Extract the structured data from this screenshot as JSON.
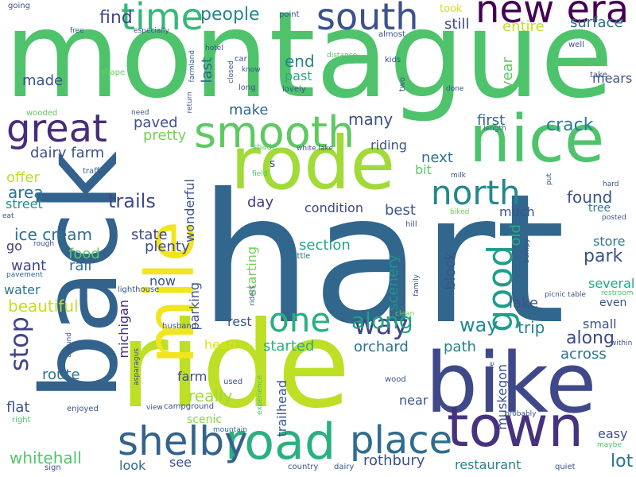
{
  "words": [
    {
      "text": "hart",
      "color": "#31668d"
    },
    {
      "text": "montague",
      "color": "#4ec36b"
    },
    {
      "text": "ride",
      "color": "#bddf26"
    },
    {
      "text": "back",
      "color": "#33628d"
    },
    {
      "text": "bike",
      "color": "#3f4889"
    },
    {
      "text": "mile",
      "color": "#f1e51d"
    },
    {
      "text": "rode",
      "color": "#a2da37"
    },
    {
      "text": "nice",
      "color": "#4ec36b"
    },
    {
      "text": "town",
      "color": "#46327e"
    },
    {
      "text": "new era",
      "color": "#440154"
    },
    {
      "text": "south",
      "color": "#3b528b"
    },
    {
      "text": "smooth",
      "color": "#5ec962"
    },
    {
      "text": "great",
      "color": "#472c7a"
    },
    {
      "text": "time",
      "color": "#35b779"
    },
    {
      "text": "road",
      "color": "#2ab07f"
    },
    {
      "text": "place",
      "color": "#2f6c8e"
    },
    {
      "text": "shelby",
      "color": "#33638d"
    },
    {
      "text": "north",
      "color": "#24878e"
    },
    {
      "text": "good",
      "color": "#1f9e89"
    },
    {
      "text": "one",
      "color": "#29af7f"
    },
    {
      "text": "stop",
      "color": "#414487"
    },
    {
      "text": "way",
      "color": "#414487"
    },
    {
      "text": "along",
      "color": "#20a386"
    },
    {
      "text": "along",
      "color": "#3e4a89"
    },
    {
      "text": "way",
      "color": "#23898e"
    },
    {
      "text": "people",
      "color": "#25858e"
    },
    {
      "text": "find",
      "color": "#3f4788"
    },
    {
      "text": "made",
      "color": "#3b528b"
    },
    {
      "text": "took",
      "color": "#d0e11c"
    },
    {
      "text": "still",
      "color": "#404688"
    },
    {
      "text": "entire",
      "color": "#c2df23"
    },
    {
      "text": "surface",
      "color": "#2d718e"
    },
    {
      "text": "end",
      "color": "#25858e"
    },
    {
      "text": "year",
      "color": "#5ec962"
    },
    {
      "text": "past",
      "color": "#26ad81"
    },
    {
      "text": "last",
      "color": "#32648e"
    },
    {
      "text": "mears",
      "color": "#3d4e8a"
    },
    {
      "text": "paved",
      "color": "#3b528b"
    },
    {
      "text": "pretty",
      "color": "#75d054"
    },
    {
      "text": "make",
      "color": "#306a8e"
    },
    {
      "text": "many",
      "color": "#3b528b"
    },
    {
      "text": "first",
      "color": "#31688e"
    },
    {
      "text": "crack",
      "color": "#297b8e"
    },
    {
      "text": "dairy farm",
      "color": "#3b528b"
    },
    {
      "text": "riding",
      "color": "#3b528b"
    },
    {
      "text": "next",
      "color": "#2c728e"
    },
    {
      "text": "bit",
      "color": "#5ec962"
    },
    {
      "text": "offer",
      "color": "#bddf26"
    },
    {
      "text": "trails",
      "color": "#3e4989"
    },
    {
      "text": "found",
      "color": "#3b528b"
    },
    {
      "text": "area",
      "color": "#2c738e"
    },
    {
      "text": "day",
      "color": "#433e85"
    },
    {
      "text": "street",
      "color": "#21918c"
    },
    {
      "text": "condition",
      "color": "#3f4788"
    },
    {
      "text": "best",
      "color": "#3b528b"
    },
    {
      "text": "much",
      "color": "#3b528b"
    },
    {
      "text": "tree",
      "color": "#277f8e"
    },
    {
      "text": "wonderful",
      "color": "#3b528b"
    },
    {
      "text": "ice cream",
      "color": "#2e6e8e"
    },
    {
      "text": "state",
      "color": "#3e4989"
    },
    {
      "text": "plenty",
      "color": "#3d4e8a"
    },
    {
      "text": "section",
      "color": "#22a785"
    },
    {
      "text": "park",
      "color": "#3b528b"
    },
    {
      "text": "store",
      "color": "#2a788e"
    },
    {
      "text": "go",
      "color": "#443983"
    },
    {
      "text": "food",
      "color": "#5ec962"
    },
    {
      "text": "rail",
      "color": "#2e6f8e"
    },
    {
      "text": "want",
      "color": "#3f4889"
    },
    {
      "text": "old",
      "color": "#26ad81"
    },
    {
      "text": "several",
      "color": "#22a884"
    },
    {
      "text": "now",
      "color": "#3b528b"
    },
    {
      "text": "scenery",
      "color": "#1f958b"
    },
    {
      "text": "block",
      "color": "#3b528b"
    },
    {
      "text": "water",
      "color": "#2a788e"
    },
    {
      "text": "lake",
      "color": "#3b528b"
    },
    {
      "text": "beautiful",
      "color": "#c2df23"
    },
    {
      "text": "parking",
      "color": "#3b528b"
    },
    {
      "text": "even",
      "color": "#3b528b"
    },
    {
      "text": "lot",
      "color": "#2c728e"
    },
    {
      "text": "trip",
      "color": "#26828e"
    },
    {
      "text": "michigan",
      "color": "#472d7b"
    },
    {
      "text": "starting",
      "color": "#6ece58"
    },
    {
      "text": "rest",
      "color": "#3b528b"
    },
    {
      "text": "small",
      "color": "#3b528b"
    },
    {
      "text": "started",
      "color": "#29af7f"
    },
    {
      "text": "orchard",
      "color": "#2c728e"
    },
    {
      "text": "path",
      "color": "#27808e"
    },
    {
      "text": "head",
      "color": "#dde318"
    },
    {
      "text": "across",
      "color": "#2c738e"
    },
    {
      "text": "muskegon",
      "color": "#3b528b"
    },
    {
      "text": "route",
      "color": "#2c738e"
    },
    {
      "text": "farm",
      "color": "#3e4c8a"
    },
    {
      "text": "really",
      "color": "#a2da37"
    },
    {
      "text": "flat",
      "color": "#3b528b"
    },
    {
      "text": "scenic",
      "color": "#84d44b"
    },
    {
      "text": "trailhead",
      "color": "#3b528b"
    },
    {
      "text": "near",
      "color": "#3b528b"
    },
    {
      "text": "easy",
      "color": "#3b528b"
    },
    {
      "text": "whitehall",
      "color": "#52c569"
    },
    {
      "text": "look",
      "color": "#31688e"
    },
    {
      "text": "see",
      "color": "#3b528b"
    },
    {
      "text": "rothbury",
      "color": "#3b528b"
    },
    {
      "text": "restaurant",
      "color": "#26828e"
    },
    {
      "text": "going",
      "color": "#3b528b"
    },
    {
      "text": "free",
      "color": "#3b528b"
    },
    {
      "text": "especially",
      "color": "#3b528b"
    },
    {
      "text": "hotel",
      "color": "#3b528b"
    },
    {
      "text": "point",
      "color": "#3b528b"
    },
    {
      "text": "almost",
      "color": "#3b528b"
    },
    {
      "text": "well",
      "color": "#3b528b"
    },
    {
      "text": "farmland",
      "color": "#31688e"
    },
    {
      "text": "car",
      "color": "#3b528b"
    },
    {
      "text": "distance",
      "color": "#52c569"
    },
    {
      "text": "kids",
      "color": "#3b528b"
    },
    {
      "text": "shape",
      "color": "#6ece58"
    },
    {
      "text": "know",
      "color": "#3b528b"
    },
    {
      "text": "two",
      "color": "#3b528b"
    },
    {
      "text": "take",
      "color": "#3b528b"
    },
    {
      "text": "closed",
      "color": "#3b528b"
    },
    {
      "text": "long",
      "color": "#3b528b"
    },
    {
      "text": "lovely",
      "color": "#3b528b"
    },
    {
      "text": "done",
      "color": "#3b528b"
    },
    {
      "text": "return",
      "color": "#3b528b"
    },
    {
      "text": "wooded",
      "color": "#5ec962"
    },
    {
      "text": "need",
      "color": "#3b528b"
    },
    {
      "text": "length",
      "color": "#31688e"
    },
    {
      "text": "shade",
      "color": "#52c569"
    },
    {
      "text": "white lake",
      "color": "#3b528b"
    },
    {
      "text": "s",
      "color": "#3b528b"
    },
    {
      "text": "field",
      "color": "#52c569"
    },
    {
      "text": "milk",
      "color": "#3b528b"
    },
    {
      "text": "put",
      "color": "#3b528b"
    },
    {
      "text": "hard",
      "color": "#3b528b"
    },
    {
      "text": "traffic",
      "color": "#31688e"
    },
    {
      "text": "eat",
      "color": "#3b528b"
    },
    {
      "text": "posted",
      "color": "#3b528b"
    },
    {
      "text": "biked",
      "color": "#6ece58"
    },
    {
      "text": "hill",
      "color": "#3b528b"
    },
    {
      "text": "rough",
      "color": "#3b528b"
    },
    {
      "text": "little",
      "color": "#31688e"
    },
    {
      "text": "bumpy",
      "color": "#3b528b"
    },
    {
      "text": "family",
      "color": "#3b528b"
    },
    {
      "text": "pavement",
      "color": "#31688e"
    },
    {
      "text": "lighthouse",
      "color": "#3b528b"
    },
    {
      "text": "picnic table",
      "color": "#3b528b"
    },
    {
      "text": "restroom",
      "color": "#52c569"
    },
    {
      "text": "riders",
      "color": "#3b528b"
    },
    {
      "text": "clean",
      "color": "#6ece58"
    },
    {
      "text": "husband",
      "color": "#3b528b"
    },
    {
      "text": "around",
      "color": "#3b528b"
    },
    {
      "text": "within",
      "color": "#3b528b"
    },
    {
      "text": "asparagus",
      "color": "#3b528b"
    },
    {
      "text": "used",
      "color": "#3b528b"
    },
    {
      "text": "experience",
      "color": "#52c569"
    },
    {
      "text": "wood",
      "color": "#3b528b"
    },
    {
      "text": "view",
      "color": "#3b528b"
    },
    {
      "text": "campground",
      "color": "#3b528b"
    },
    {
      "text": "enjoyed",
      "color": "#3b528b"
    },
    {
      "text": "right",
      "color": "#52c569"
    },
    {
      "text": "mountain",
      "color": "#31688e"
    },
    {
      "text": "probably",
      "color": "#3b528b"
    },
    {
      "text": "maybe",
      "color": "#52c569"
    },
    {
      "text": "sign",
      "color": "#3b528b"
    },
    {
      "text": "country",
      "color": "#3b528b"
    },
    {
      "text": "dairy",
      "color": "#3b528b"
    },
    {
      "text": "quiet",
      "color": "#3b528b"
    },
    {
      "text": "re",
      "color": "#3b528b"
    }
  ]
}
